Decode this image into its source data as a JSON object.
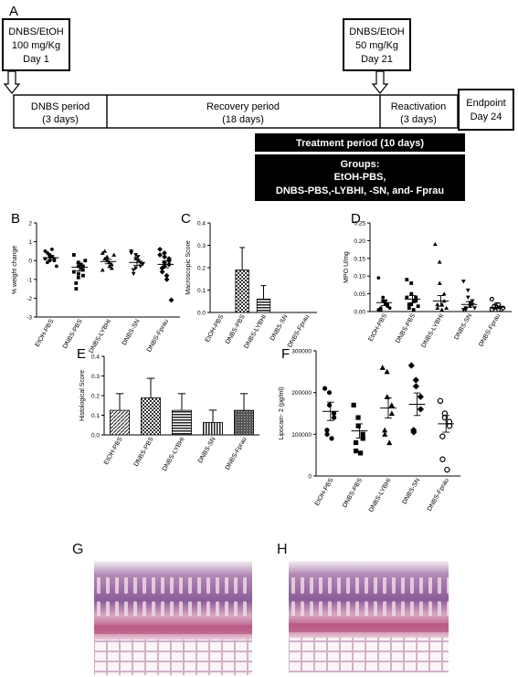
{
  "panel_letters": {
    "a": "A",
    "b": "B",
    "c": "C",
    "d": "D",
    "e": "E",
    "f": "F",
    "g": "G",
    "h": "H"
  },
  "timeline": {
    "box1": [
      "DNBS/EtOH",
      "100 mg/Kg",
      "Day 1"
    ],
    "box2": [
      "DNBS/EtOH",
      "50 mg/Kg",
      "Day 21"
    ],
    "periods": [
      {
        "l1": "DNBS period",
        "l2": "(3 days)"
      },
      {
        "l1": "Recovery  period",
        "l2": "(18 days)"
      },
      {
        "l1": "Reactivation",
        "l2": "(3 days)"
      }
    ],
    "endpoint": [
      "Endpoint",
      "Day 24"
    ],
    "treatment": "Treatment  period (10 days)",
    "groups": [
      "Groups:",
      "EtOH-PBS,",
      "DNBS-PBS,-LYBHI, -SN, and- Fprau"
    ]
  },
  "chart_data": [
    {
      "id": "B",
      "type": "scatter",
      "ylabel": "% weight change",
      "ylim": [
        -3,
        2
      ],
      "yticks": [
        "2",
        "1",
        "0",
        "-1",
        "-2",
        "-3"
      ],
      "categories": [
        "EtOH-PBS",
        "DNBS-PBS",
        "DNBS-LYBHI",
        "DNBS-SN",
        "DNBS-Fprau"
      ],
      "markers": [
        "circle",
        "square",
        "triangle",
        "triangle-down",
        "diamond"
      ],
      "means": [
        0.15,
        -0.35,
        -0.05,
        -0.1,
        -0.2
      ],
      "sem": [
        0.12,
        0.2,
        0.12,
        0.15,
        0.18
      ],
      "points": [
        [
          0.5,
          0.3,
          0.2,
          0.1,
          0.0,
          -0.1,
          0.4,
          0.6,
          0.2,
          -0.3,
          0.1,
          0.3,
          0.0
        ],
        [
          0.3,
          -0.1,
          -0.3,
          -0.5,
          -0.8,
          -1.2,
          -1.5,
          -0.2,
          -0.4,
          0.0,
          -0.6,
          -0.9,
          -0.7,
          -0.3
        ],
        [
          0.4,
          0.2,
          0.0,
          -0.2,
          -0.4,
          0.5,
          0.1,
          -0.1,
          -0.3,
          0.3,
          -0.5
        ],
        [
          0.5,
          0.3,
          0.1,
          -0.1,
          -0.3,
          -0.5,
          -0.7,
          0.2,
          0.0,
          -0.2,
          0.4,
          -0.4
        ],
        [
          0.6,
          0.4,
          0.2,
          0.0,
          -0.2,
          -0.4,
          -0.6,
          -0.8,
          -1.0,
          -2.1,
          0.3,
          -0.1,
          -0.3,
          0.1
        ]
      ]
    },
    {
      "id": "C",
      "type": "bar",
      "ylabel": "Macroscopic Score",
      "ylim": [
        0,
        0.4
      ],
      "yticks": [
        "0.4",
        "0.3",
        "0.2",
        "0.1",
        "0.0"
      ],
      "categories": [
        "EtOH-PBS",
        "DNBS-PBS",
        "DNBS-LYBHI",
        "DNBS-SN",
        "DNBS-Fprau"
      ],
      "values": [
        0,
        0.19,
        0.06,
        0,
        0
      ],
      "errors": [
        0,
        0.1,
        0.06,
        0,
        0
      ],
      "patterns": [
        "none",
        "check",
        "hstripe",
        "none",
        "none"
      ]
    },
    {
      "id": "D",
      "type": "scatter",
      "ylabel": "MPO U/mg",
      "ylim": [
        0,
        0.25
      ],
      "yticks": [
        "0.25",
        "0.20",
        "0.15",
        "0.10",
        "0.05",
        "0.00"
      ],
      "categories": [
        "EtOH-PBS",
        "DNBS-PBS",
        "DNBS-LYBHI",
        "DNBS-SN",
        "DNBS-Fprau"
      ],
      "markers": [
        "circle",
        "square",
        "triangle",
        "triangle-down",
        "circle-open"
      ],
      "means": [
        0.025,
        0.035,
        0.03,
        0.02,
        0.012
      ],
      "sem": [
        0.008,
        0.01,
        0.015,
        0.008,
        0.004
      ],
      "points": [
        [
          0.095,
          0.04,
          0.03,
          0.02,
          0.015,
          0.01,
          0.005,
          0.02,
          0.03,
          0.01,
          0.005
        ],
        [
          0.09,
          0.08,
          0.05,
          0.04,
          0.03,
          0.02,
          0.01,
          0.005,
          0.03,
          0.015,
          0.04,
          0.02
        ],
        [
          0.19,
          0.14,
          0.08,
          0.05,
          0.03,
          0.02,
          0.01,
          0.005,
          0.02,
          0.01
        ],
        [
          0.085,
          0.06,
          0.04,
          0.03,
          0.02,
          0.01,
          0.005,
          0.015,
          0.025,
          0.01,
          0.005
        ],
        [
          0.035,
          0.02,
          0.015,
          0.01,
          0.005,
          0.01,
          0.015,
          0.005,
          0.02,
          0.01,
          0.005
        ]
      ]
    },
    {
      "id": "E",
      "type": "bar",
      "ylabel": "Histological Score",
      "ylim": [
        0,
        0.4
      ],
      "yticks": [
        "0.4",
        "0.3",
        "0.2",
        "0.1",
        "0.0"
      ],
      "categories": [
        "EtOH-PBS",
        "DNBS-PBS",
        "DNBS-LYBHI",
        "DNBS-SN",
        "DNBS-Fprau"
      ],
      "values": [
        0.125,
        0.188,
        0.125,
        0.063,
        0.125
      ],
      "errors": [
        0.085,
        0.1,
        0.085,
        0.063,
        0.085
      ],
      "patterns": [
        "diag",
        "check",
        "hstripe",
        "vstripe",
        "dense"
      ]
    },
    {
      "id": "F",
      "type": "scatter",
      "ylabel": "Lipocain- 2 (pg/ml)",
      "ylim": [
        0,
        300000
      ],
      "yticks": [
        "300000",
        "200000",
        "100000",
        "0"
      ],
      "categories": [
        "EtOH-PBS",
        "DNBS-PBS",
        "DNBS-LYBHI",
        "DNBS-SN",
        "DNBS-Fprau"
      ],
      "markers": [
        "circle",
        "square",
        "triangle",
        "diamond",
        "circle-open"
      ],
      "means": [
        155000,
        108000,
        163000,
        172000,
        125000
      ],
      "sem": [
        22000,
        17000,
        24000,
        27000,
        20000
      ],
      "points": [
        [
          210000,
          200000,
          170000,
          150000,
          140000,
          110000,
          100000,
          90000
        ],
        [
          170000,
          140000,
          120000,
          100000,
          90000,
          80000,
          60000,
          55000
        ],
        [
          260000,
          250000,
          190000,
          170000,
          150000,
          110000,
          100000,
          80000
        ],
        [
          265000,
          230000,
          215000,
          190000,
          160000,
          110000,
          105000
        ],
        [
          180000,
          150000,
          140000,
          130000,
          120000,
          95000,
          40000,
          15000
        ]
      ]
    }
  ]
}
